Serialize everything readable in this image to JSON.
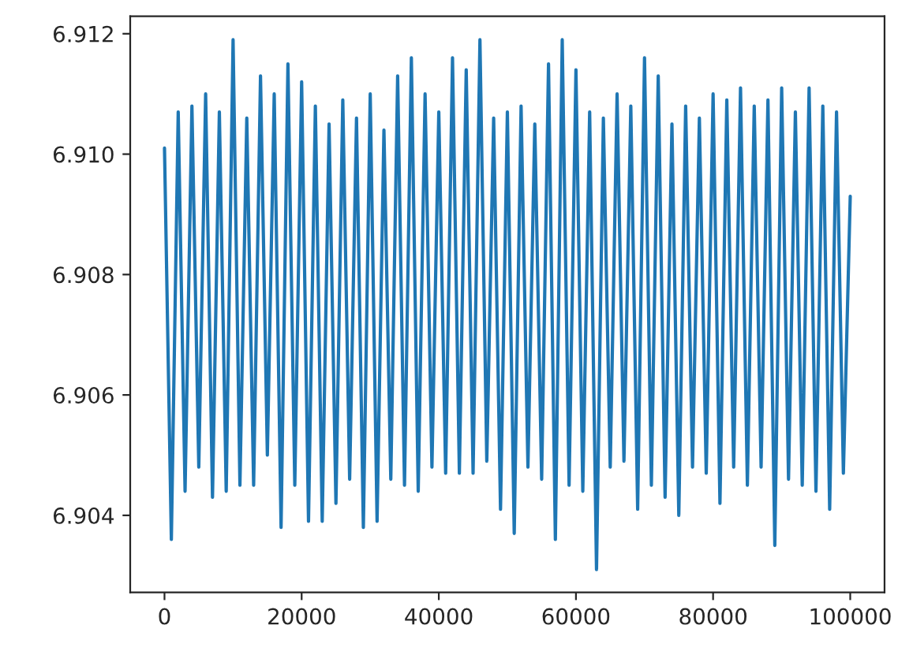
{
  "chart_data": {
    "type": "line",
    "x": [
      0,
      1000,
      2000,
      3000,
      4000,
      5000,
      6000,
      7000,
      8000,
      9000,
      10000,
      11000,
      12000,
      13000,
      14000,
      15000,
      16000,
      17000,
      18000,
      19000,
      20000,
      21000,
      22000,
      23000,
      24000,
      25000,
      26000,
      27000,
      28000,
      29000,
      30000,
      31000,
      32000,
      33000,
      34000,
      35000,
      36000,
      37000,
      38000,
      39000,
      40000,
      41000,
      42000,
      43000,
      44000,
      45000,
      46000,
      47000,
      48000,
      49000,
      50000,
      51000,
      52000,
      53000,
      54000,
      55000,
      56000,
      57000,
      58000,
      59000,
      60000,
      61000,
      62000,
      63000,
      64000,
      65000,
      66000,
      67000,
      68000,
      69000,
      70000,
      71000,
      72000,
      73000,
      74000,
      75000,
      76000,
      77000,
      78000,
      79000,
      80000,
      81000,
      82000,
      83000,
      84000,
      85000,
      86000,
      87000,
      88000,
      89000,
      90000,
      91000,
      92000,
      93000,
      94000,
      95000,
      96000,
      97000,
      98000,
      99000,
      100000
    ],
    "series": [
      {
        "color": "#1f77b4",
        "values": [
          6.9101,
          6.9036,
          6.9107,
          6.9044,
          6.9108,
          6.9048,
          6.911,
          6.9043,
          6.9107,
          6.9044,
          6.9119,
          6.9045,
          6.9106,
          6.9045,
          6.9113,
          6.905,
          6.911,
          6.9038,
          6.9115,
          6.9045,
          6.9112,
          6.9039,
          6.9108,
          6.9039,
          6.9105,
          6.9042,
          6.9109,
          6.9046,
          6.9106,
          6.9038,
          6.911,
          6.9039,
          6.9104,
          6.9046,
          6.9113,
          6.9045,
          6.9116,
          6.9044,
          6.911,
          6.9048,
          6.9107,
          6.9047,
          6.9116,
          6.9047,
          6.9114,
          6.9047,
          6.9119,
          6.9049,
          6.9106,
          6.9041,
          6.9107,
          6.9037,
          6.9108,
          6.9048,
          6.9105,
          6.9046,
          6.9115,
          6.9036,
          6.9119,
          6.9045,
          6.9114,
          6.9044,
          6.9107,
          6.9031,
          6.9106,
          6.9048,
          6.911,
          6.9049,
          6.9108,
          6.9041,
          6.9116,
          6.9045,
          6.9113,
          6.9043,
          6.9105,
          6.904,
          6.9108,
          6.9048,
          6.9106,
          6.9047,
          6.911,
          6.9042,
          6.9109,
          6.9048,
          6.9111,
          6.9045,
          6.9108,
          6.9048,
          6.9109,
          6.9035,
          6.9111,
          6.9046,
          6.9107,
          6.9045,
          6.9111,
          6.9044,
          6.9108,
          6.9041,
          6.9107,
          6.9047,
          6.9093
        ]
      }
    ],
    "xlim": [
      -5000,
      105000
    ],
    "xticks": [
      0,
      20000,
      40000,
      60000,
      80000,
      100000
    ],
    "ylim": [
      6.90272,
      6.91229
    ],
    "yticks": [
      {
        "value": 6.904,
        "label": "6.904"
      },
      {
        "value": 6.906,
        "label": "6.906"
      },
      {
        "value": 6.908,
        "label": "6.908"
      },
      {
        "value": 6.91,
        "label": "6.910"
      },
      {
        "value": 6.912,
        "label": "6.912"
      }
    ],
    "grid": false
  }
}
